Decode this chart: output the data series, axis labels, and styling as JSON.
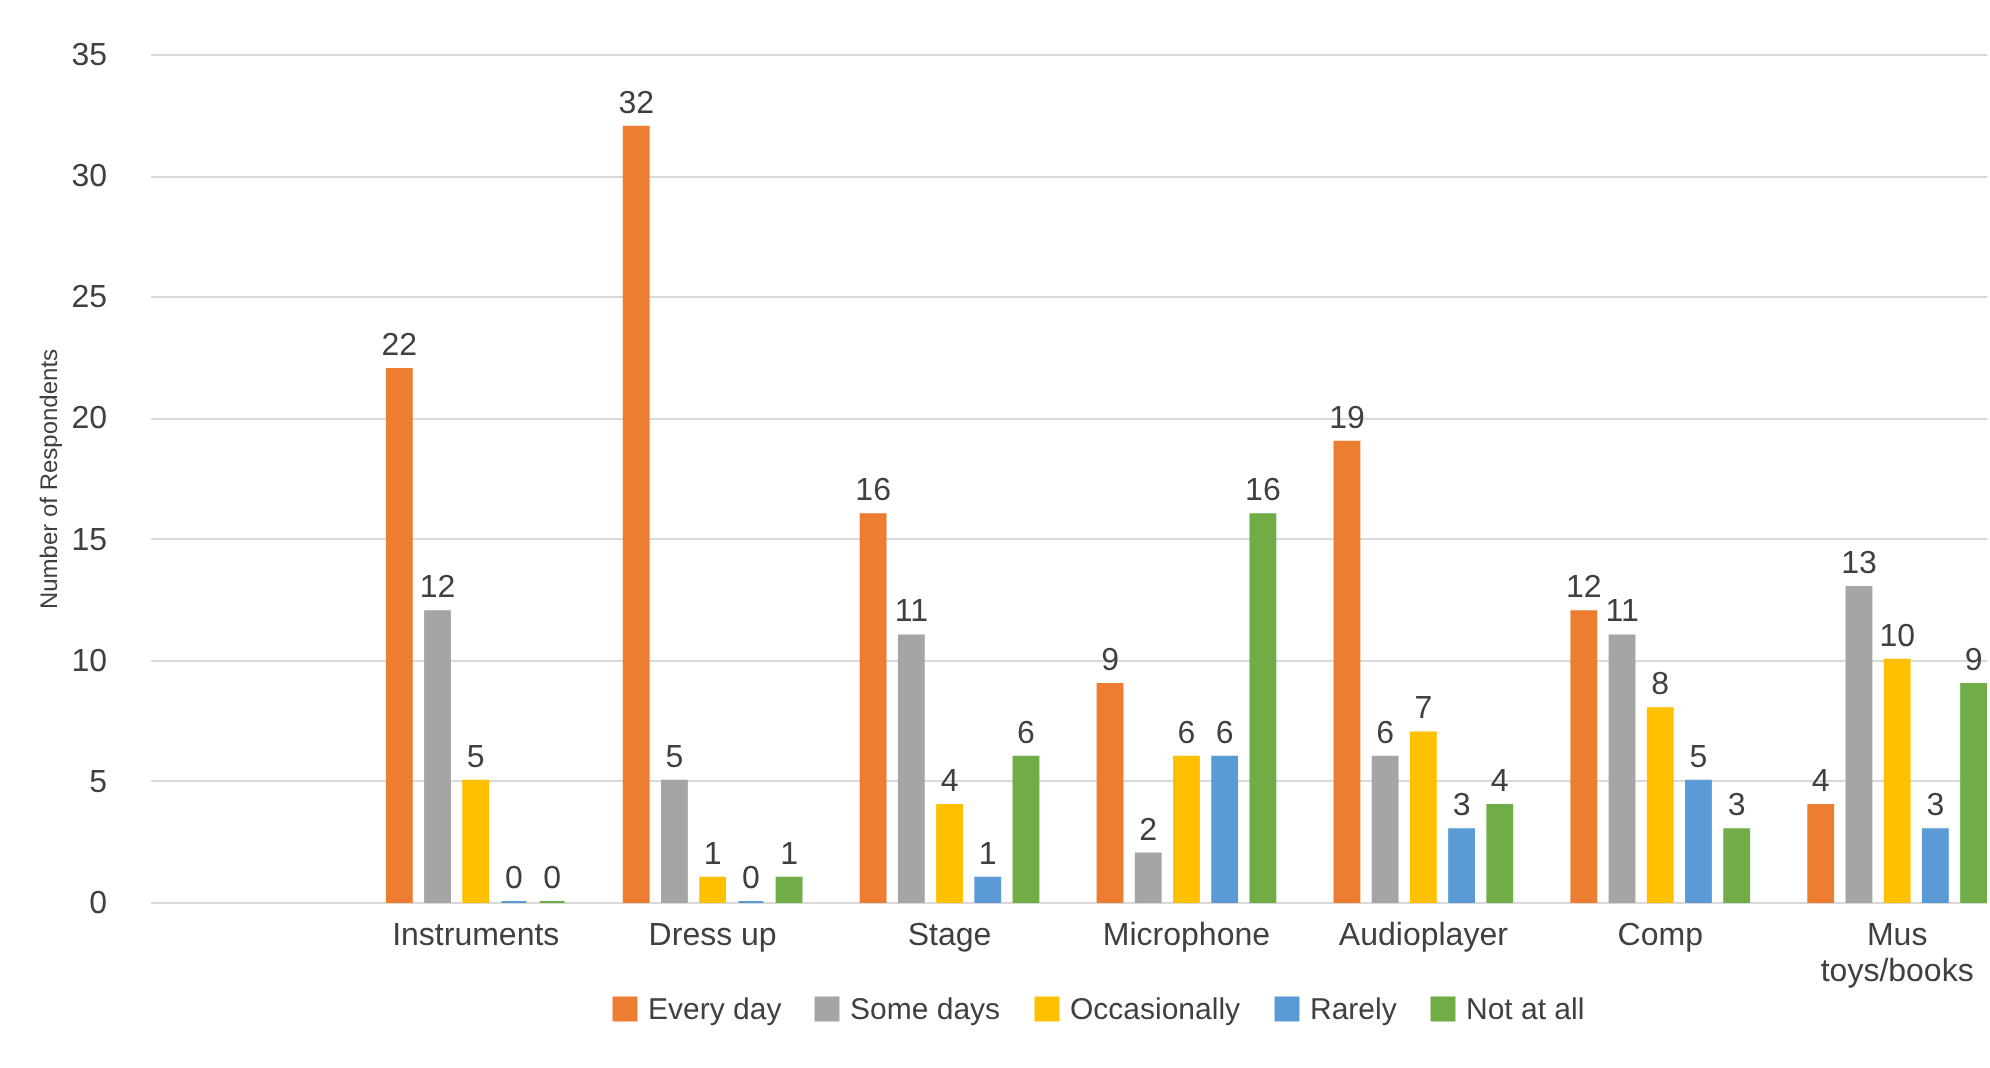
{
  "chart_data": {
    "type": "bar",
    "ylabel": "Number of Respondents",
    "categories": [
      null,
      "Instruments",
      "Dress up",
      "Stage",
      "Microphone",
      "Audioplayer",
      "Comp",
      "Mus toys/books"
    ],
    "series": [
      {
        "name": "Every day",
        "color": "#ed7d31",
        "values": [
          null,
          22,
          32,
          16,
          9,
          19,
          12,
          4
        ]
      },
      {
        "name": "Some days",
        "color": "#a5a5a5",
        "values": [
          null,
          12,
          5,
          11,
          2,
          6,
          11,
          13
        ]
      },
      {
        "name": "Occasionally",
        "color": "#ffc000",
        "values": [
          null,
          5,
          1,
          4,
          6,
          7,
          8,
          10
        ]
      },
      {
        "name": "Rarely",
        "color": "#5b9bd5",
        "values": [
          null,
          0,
          0,
          1,
          6,
          3,
          5,
          3
        ]
      },
      {
        "name": "Not at all",
        "color": "#70ad47",
        "values": [
          null,
          0,
          1,
          6,
          16,
          4,
          3,
          9
        ]
      }
    ],
    "ylim": [
      0,
      35
    ],
    "yticks": [
      0,
      5,
      10,
      15,
      20,
      25,
      30,
      35
    ],
    "grid": true,
    "legend": "bottom",
    "data_labels": true
  }
}
